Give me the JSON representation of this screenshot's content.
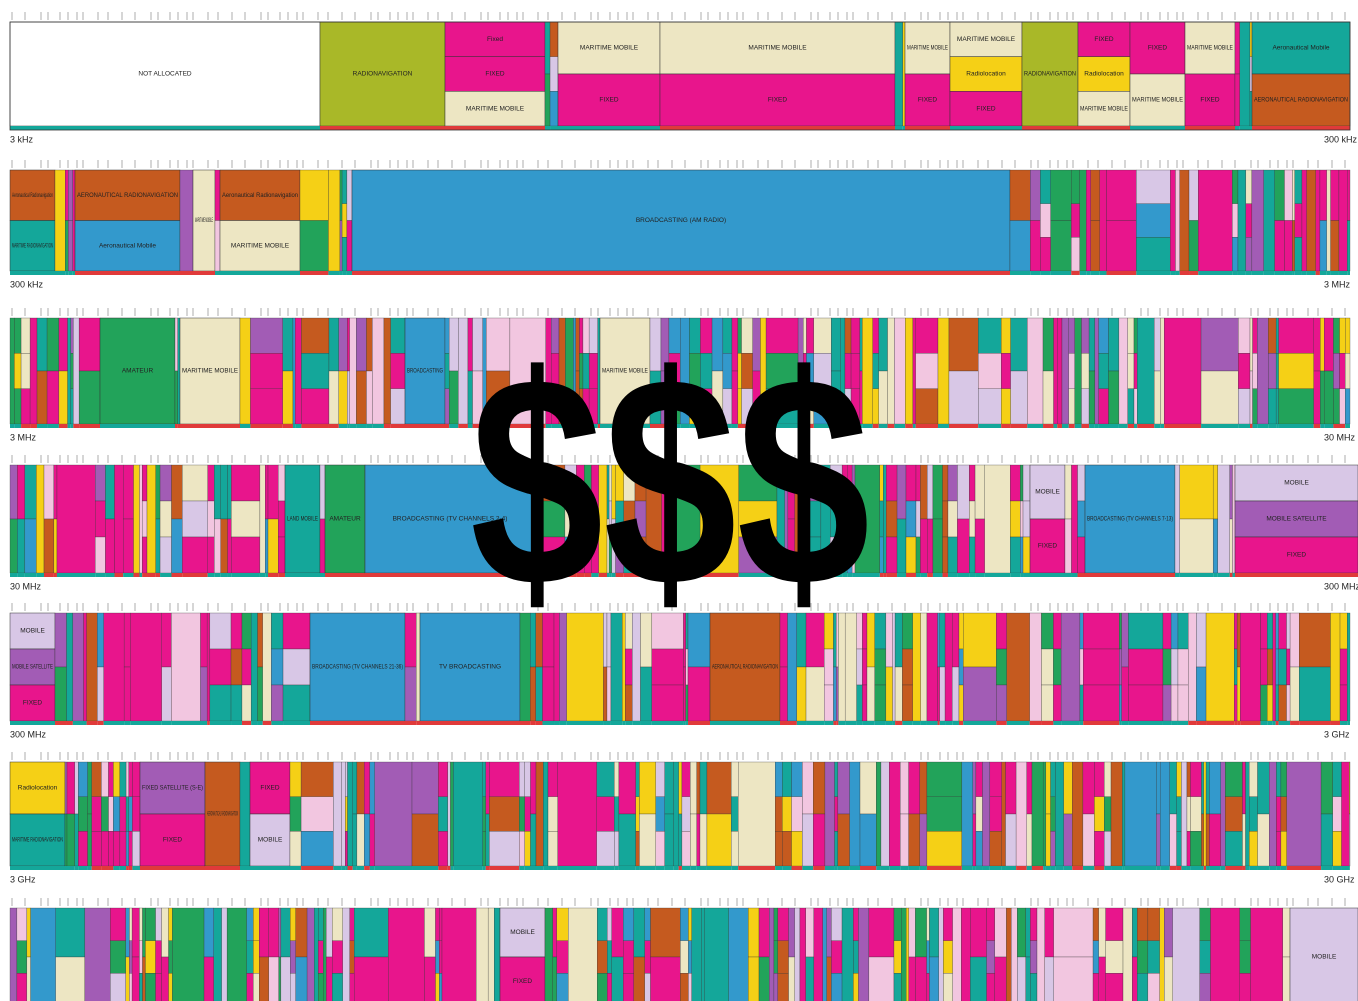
{
  "rows": [
    {
      "start": "3 kHz",
      "end": "300 kHz",
      "blocks": [
        {
          "labels": [
            "NOT ALLOCATED"
          ]
        },
        {
          "labels": [
            "RADIONAVIGATION"
          ]
        },
        {
          "labels": [
            "Fixed",
            "FIXED",
            "MARITIME MOBILE"
          ]
        },
        {
          "labels": [
            "MARITIME MOBILE",
            "FIXED"
          ]
        },
        {
          "labels": [
            "MARITIME MOBILE",
            "FIXED"
          ]
        },
        {
          "labels": [
            "MARITIME MOBILE",
            "FIXED"
          ]
        },
        {
          "labels": [
            "MARITIME MOBILE",
            "Radiolocation",
            "FIXED"
          ]
        },
        {
          "labels": [
            "RADIONAVIGATION"
          ]
        },
        {
          "labels": [
            "FIXED",
            "Radiolocation",
            "MARITIME MOBILE"
          ]
        },
        {
          "labels": [
            "FIXED",
            "MARITIME MOBILE"
          ]
        },
        {
          "labels": [
            "MARITIME MOBILE",
            "FIXED"
          ]
        },
        {
          "labels": [
            "Aeronautical Mobile",
            "AERONAUTICAL RADIONAVIGATION"
          ]
        }
      ]
    },
    {
      "start": "300 kHz",
      "end": "3 MHz",
      "blocks": [
        {
          "labels": [
            "Aeronautical Radionavigation",
            "MARITIME RADIONAVIGATION"
          ]
        },
        {
          "labels": [
            "AERONAUTICAL RADIONAVIGATION",
            "Aeronautical Mobile"
          ]
        },
        {
          "labels": [
            "MARITIME MOBILE"
          ]
        },
        {
          "labels": [
            "Aeronautical Radionavigation",
            "MARITIME MOBILE"
          ]
        },
        {
          "labels": [
            "BROADCASTING (AM RADIO)"
          ]
        }
      ]
    },
    {
      "start": "3 MHz",
      "end": "30 MHz",
      "blocks": [
        {
          "labels": [
            "AMATEUR"
          ]
        },
        {
          "labels": [
            "MARITIME MOBILE"
          ]
        },
        {
          "labels": [
            "BROADCASTING"
          ]
        },
        {
          "labels": [
            "MARITIME MOBILE"
          ]
        }
      ]
    },
    {
      "start": "30 MHz",
      "end": "300 MHz",
      "blocks": [
        {
          "labels": [
            "LAND MOBILE"
          ]
        },
        {
          "labels": [
            "AMATEUR"
          ]
        },
        {
          "labels": [
            "BROADCASTING (TV CHANNELS 2-4)"
          ]
        },
        {
          "labels": [
            "MOBILE",
            "FIXED"
          ]
        },
        {
          "labels": [
            "BROADCASTING (TV CHANNELS 7-13)"
          ]
        },
        {
          "labels": [
            "MOBILE",
            "MOBILE SATELLITE",
            "FIXED"
          ]
        }
      ]
    },
    {
      "start": "300 MHz",
      "end": "3 GHz",
      "blocks": [
        {
          "labels": [
            "MOBILE",
            "MOBILE SATELLITE",
            "FIXED"
          ]
        },
        {
          "labels": [
            "BROADCASTING (TV CHANNELS 21-36)"
          ]
        },
        {
          "labels": [
            "TV BROADCASTING"
          ]
        },
        {
          "labels": [
            "AERONAUTICAL RADIONAVIGATION"
          ]
        }
      ]
    },
    {
      "start": "3 GHz",
      "end": "30 GHz",
      "blocks": [
        {
          "labels": [
            "Radiolocation",
            "MARITIME RADIONAVIGATION"
          ]
        },
        {
          "labels": [
            "FIXED SATELLITE (S-E)",
            "FIXED"
          ]
        },
        {
          "labels": [
            "AERONAUTICAL RADIONAVIGATION"
          ]
        },
        {
          "labels": [
            "FIXED",
            "MOBILE"
          ]
        }
      ]
    },
    {
      "blocks": [
        {
          "labels": [
            "MOBILE",
            "FIXED"
          ]
        },
        {
          "labels": [
            "MOBILE"
          ]
        }
      ]
    }
  ],
  "overlay": "$$$"
}
